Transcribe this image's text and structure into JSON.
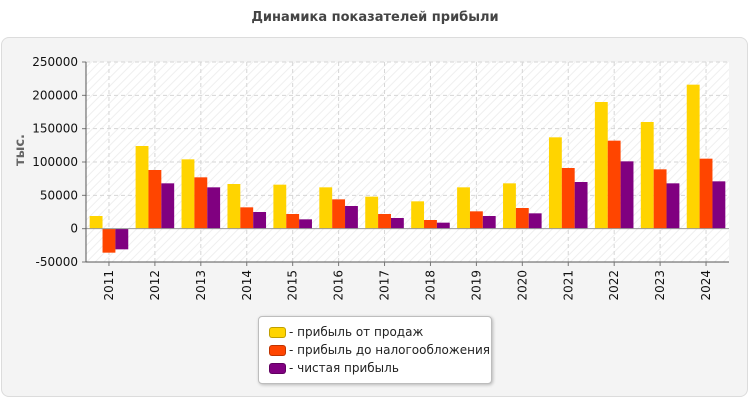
{
  "chart_data": {
    "type": "bar",
    "title": "Динамика показателей прибыли",
    "ylabel": "тыс.",
    "xlabel": "",
    "ylim": [
      -50000,
      250000
    ],
    "yticks": [
      -50000,
      0,
      50000,
      100000,
      150000,
      200000,
      250000
    ],
    "ytick_labels": [
      "-50000",
      "0",
      "50000",
      "100000",
      "150000",
      "200000",
      "250000"
    ],
    "grid": true,
    "legend_position": "bottom-center",
    "categories": [
      "2011",
      "2012",
      "2013",
      "2014",
      "2015",
      "2016",
      "2017",
      "2018",
      "2019",
      "2020",
      "2021",
      "2022",
      "2023",
      "2024"
    ],
    "series": [
      {
        "name": "- прибыль от продаж",
        "color": "#ffd400",
        "values": [
          19000,
          124000,
          104000,
          67000,
          66000,
          62000,
          48000,
          41000,
          62000,
          68000,
          137000,
          190000,
          160000,
          216000
        ]
      },
      {
        "name": "- прибыль до налогообложения",
        "color": "#ff4500",
        "values": [
          -36000,
          88000,
          77000,
          32000,
          22000,
          44000,
          22000,
          13000,
          26000,
          31000,
          91000,
          132000,
          89000,
          105000
        ]
      },
      {
        "name": "- чистая прибыль",
        "color": "#800080",
        "values": [
          -31000,
          68000,
          62000,
          25000,
          14000,
          34000,
          16000,
          9000,
          19000,
          23000,
          70000,
          101000,
          68000,
          71000
        ]
      }
    ]
  }
}
